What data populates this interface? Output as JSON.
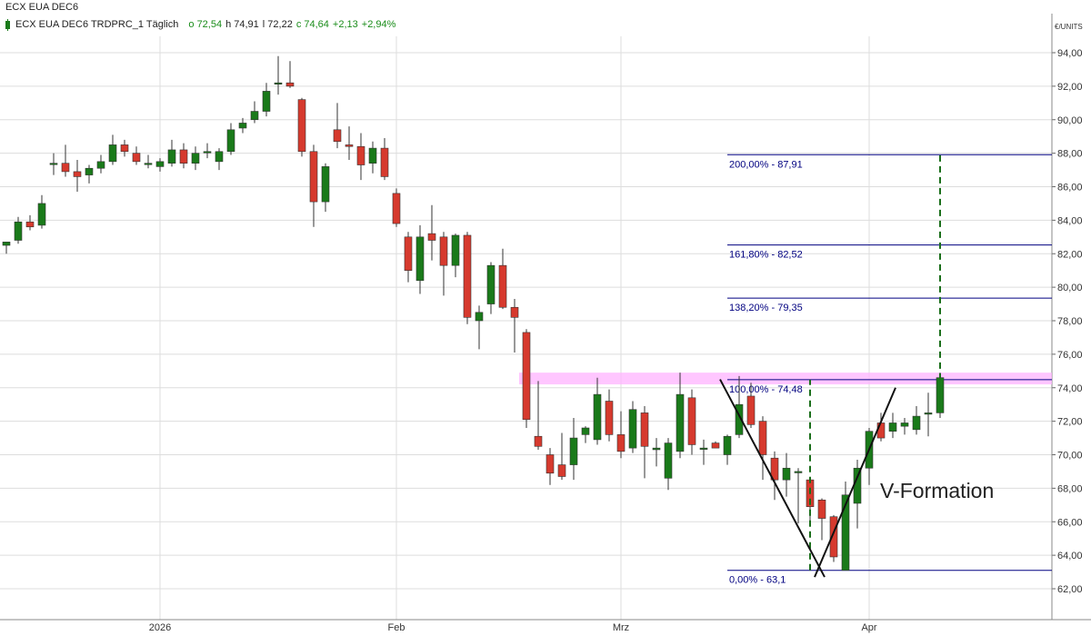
{
  "legend": {
    "title": "ECX EUA DEC6",
    "series": "ECX EUA DEC6 TRDPRC_1 Täglich",
    "open": "o 72,54",
    "high": "h 74,91",
    "low": "l 72,22",
    "close": "c 74,64",
    "change": "+2,13",
    "change_pct": "+2,94%"
  },
  "chart_data": {
    "type": "candlestick",
    "title": "ECX EUA DEC6",
    "ylabel": "€/UNITS",
    "ylim": [
      61,
      96
    ],
    "yticks": [
      "62,00",
      "64,00",
      "66,00",
      "68,00",
      "70,00",
      "72,00",
      "74,00",
      "76,00",
      "78,00",
      "80,00",
      "82,00",
      "84,00",
      "86,00",
      "88,00",
      "90,00",
      "92,00",
      "94,00"
    ],
    "xticks": [
      {
        "label": "2026",
        "index": 13
      },
      {
        "label": "Feb",
        "index": 33
      },
      {
        "label": "Mrz",
        "index": 52
      },
      {
        "label": "Apr",
        "index": 73
      }
    ],
    "colors": {
      "up": "#1a7a1a",
      "down": "#d63a2e",
      "grid": "#dddddd",
      "fib": "#000080",
      "zone": "#ffb3ff",
      "target": "#1a6e1a"
    },
    "candles": [
      {
        "o": 82.5,
        "h": 82.7,
        "l": 82.0,
        "c": 82.7
      },
      {
        "o": 82.8,
        "h": 84.2,
        "l": 82.6,
        "c": 83.9
      },
      {
        "o": 83.9,
        "h": 84.3,
        "l": 83.4,
        "c": 83.6
      },
      {
        "o": 83.7,
        "h": 85.5,
        "l": 83.5,
        "c": 85.0
      },
      {
        "o": 87.4,
        "h": 88.0,
        "l": 86.7,
        "c": 87.4
      },
      {
        "o": 87.4,
        "h": 88.5,
        "l": 86.6,
        "c": 86.9
      },
      {
        "o": 86.9,
        "h": 87.6,
        "l": 85.7,
        "c": 86.6
      },
      {
        "o": 86.7,
        "h": 87.3,
        "l": 86.2,
        "c": 87.1
      },
      {
        "o": 87.1,
        "h": 87.9,
        "l": 86.8,
        "c": 87.5
      },
      {
        "o": 87.5,
        "h": 89.1,
        "l": 87.3,
        "c": 88.5
      },
      {
        "o": 88.5,
        "h": 88.8,
        "l": 87.8,
        "c": 88.1
      },
      {
        "o": 88.0,
        "h": 88.4,
        "l": 87.3,
        "c": 87.5
      },
      {
        "o": 87.4,
        "h": 87.9,
        "l": 87.1,
        "c": 87.4
      },
      {
        "o": 87.2,
        "h": 87.7,
        "l": 86.9,
        "c": 87.5
      },
      {
        "o": 87.4,
        "h": 88.8,
        "l": 87.2,
        "c": 88.2
      },
      {
        "o": 88.2,
        "h": 88.6,
        "l": 87.1,
        "c": 87.4
      },
      {
        "o": 87.4,
        "h": 88.4,
        "l": 87.0,
        "c": 88.0
      },
      {
        "o": 88.1,
        "h": 88.6,
        "l": 87.7,
        "c": 88.1
      },
      {
        "o": 87.5,
        "h": 88.3,
        "l": 87.0,
        "c": 88.1
      },
      {
        "o": 88.1,
        "h": 89.8,
        "l": 87.9,
        "c": 89.4
      },
      {
        "o": 89.5,
        "h": 90.1,
        "l": 89.2,
        "c": 89.8
      },
      {
        "o": 90.0,
        "h": 91.1,
        "l": 89.8,
        "c": 90.5
      },
      {
        "o": 90.5,
        "h": 92.2,
        "l": 90.2,
        "c": 91.7
      },
      {
        "o": 92.2,
        "h": 93.8,
        "l": 91.5,
        "c": 92.2
      },
      {
        "o": 92.2,
        "h": 93.5,
        "l": 91.9,
        "c": 92.0
      },
      {
        "o": 91.2,
        "h": 91.3,
        "l": 87.8,
        "c": 88.1
      },
      {
        "o": 88.1,
        "h": 88.5,
        "l": 83.6,
        "c": 85.1
      },
      {
        "o": 85.1,
        "h": 87.4,
        "l": 84.5,
        "c": 87.2
      },
      {
        "o": 89.4,
        "h": 91.0,
        "l": 88.3,
        "c": 88.7
      },
      {
        "o": 88.5,
        "h": 89.6,
        "l": 87.6,
        "c": 88.4
      },
      {
        "o": 88.4,
        "h": 89.2,
        "l": 86.4,
        "c": 87.3
      },
      {
        "o": 87.4,
        "h": 88.7,
        "l": 86.8,
        "c": 88.3
      },
      {
        "o": 88.3,
        "h": 88.9,
        "l": 86.4,
        "c": 86.6
      },
      {
        "o": 85.6,
        "h": 85.9,
        "l": 83.6,
        "c": 83.8
      },
      {
        "o": 83.0,
        "h": 83.3,
        "l": 80.3,
        "c": 81.0
      },
      {
        "o": 80.4,
        "h": 83.7,
        "l": 79.6,
        "c": 83.0
      },
      {
        "o": 83.2,
        "h": 84.9,
        "l": 81.6,
        "c": 82.8
      },
      {
        "o": 83.0,
        "h": 83.3,
        "l": 79.5,
        "c": 81.3
      },
      {
        "o": 81.3,
        "h": 83.2,
        "l": 80.6,
        "c": 83.1
      },
      {
        "o": 83.1,
        "h": 83.3,
        "l": 77.8,
        "c": 78.2
      },
      {
        "o": 78.0,
        "h": 78.9,
        "l": 76.3,
        "c": 78.5
      },
      {
        "o": 79.0,
        "h": 81.5,
        "l": 78.4,
        "c": 81.3
      },
      {
        "o": 81.3,
        "h": 82.3,
        "l": 78.7,
        "c": 78.8
      },
      {
        "o": 78.8,
        "h": 79.3,
        "l": 76.1,
        "c": 78.2
      },
      {
        "o": 77.3,
        "h": 77.5,
        "l": 71.6,
        "c": 72.1
      },
      {
        "o": 71.1,
        "h": 74.4,
        "l": 70.3,
        "c": 70.5
      },
      {
        "o": 70.0,
        "h": 70.4,
        "l": 68.2,
        "c": 68.9
      },
      {
        "o": 69.4,
        "h": 71.3,
        "l": 68.5,
        "c": 68.7
      },
      {
        "o": 69.4,
        "h": 72.2,
        "l": 68.5,
        "c": 71.0
      },
      {
        "o": 71.2,
        "h": 71.7,
        "l": 70.7,
        "c": 71.6
      },
      {
        "o": 70.9,
        "h": 74.6,
        "l": 70.6,
        "c": 73.6
      },
      {
        "o": 73.2,
        "h": 73.9,
        "l": 70.8,
        "c": 71.2
      },
      {
        "o": 71.2,
        "h": 72.6,
        "l": 69.8,
        "c": 70.2
      },
      {
        "o": 70.4,
        "h": 73.2,
        "l": 70.1,
        "c": 72.7
      },
      {
        "o": 72.5,
        "h": 72.9,
        "l": 68.6,
        "c": 70.5
      },
      {
        "o": 70.3,
        "h": 71.0,
        "l": 69.3,
        "c": 70.4
      },
      {
        "o": 68.6,
        "h": 71.0,
        "l": 67.9,
        "c": 70.7
      },
      {
        "o": 70.2,
        "h": 74.9,
        "l": 69.8,
        "c": 73.6
      },
      {
        "o": 73.4,
        "h": 73.9,
        "l": 70.0,
        "c": 70.6
      },
      {
        "o": 70.4,
        "h": 70.9,
        "l": 69.4,
        "c": 70.4
      },
      {
        "o": 70.7,
        "h": 70.8,
        "l": 70.4,
        "c": 70.4
      },
      {
        "o": 70.0,
        "h": 71.2,
        "l": 69.4,
        "c": 71.1
      },
      {
        "o": 71.2,
        "h": 74.7,
        "l": 71.0,
        "c": 73.0
      },
      {
        "o": 73.5,
        "h": 74.3,
        "l": 71.6,
        "c": 71.8
      },
      {
        "o": 72.0,
        "h": 72.3,
        "l": 68.5,
        "c": 70.0
      },
      {
        "o": 69.8,
        "h": 70.2,
        "l": 67.3,
        "c": 68.5
      },
      {
        "o": 68.5,
        "h": 70.1,
        "l": 67.5,
        "c": 69.2
      },
      {
        "o": 69.0,
        "h": 69.2,
        "l": 65.9,
        "c": 69.0
      },
      {
        "o": 68.5,
        "h": 68.5,
        "l": 65.8,
        "c": 66.9
      },
      {
        "o": 67.3,
        "h": 67.4,
        "l": 64.9,
        "c": 66.2
      },
      {
        "o": 66.3,
        "h": 66.4,
        "l": 63.6,
        "c": 63.9
      },
      {
        "o": 63.1,
        "h": 68.4,
        "l": 63.1,
        "c": 67.6
      },
      {
        "o": 67.1,
        "h": 69.7,
        "l": 65.6,
        "c": 69.2
      },
      {
        "o": 69.2,
        "h": 71.6,
        "l": 68.2,
        "c": 71.4
      },
      {
        "o": 71.9,
        "h": 72.5,
        "l": 70.8,
        "c": 71.0
      },
      {
        "o": 71.4,
        "h": 72.5,
        "l": 71.0,
        "c": 71.9
      },
      {
        "o": 71.7,
        "h": 72.2,
        "l": 71.2,
        "c": 71.9
      },
      {
        "o": 71.5,
        "h": 72.9,
        "l": 71.2,
        "c": 72.3
      },
      {
        "o": 72.5,
        "h": 73.7,
        "l": 71.1,
        "c": 72.5
      },
      {
        "o": 72.5,
        "h": 74.9,
        "l": 72.2,
        "c": 74.6
      }
    ],
    "fib_levels": [
      {
        "label": "200,00% - 87,91",
        "value": 87.91
      },
      {
        "label": "161,80% - 82,52",
        "value": 82.52
      },
      {
        "label": "138,20% - 79,35",
        "value": 79.35
      },
      {
        "label": "100,00% - 74,48",
        "value": 74.48
      },
      {
        "label": "0,00% - 63,1",
        "value": 63.1
      }
    ],
    "resistance_zone": {
      "from": 74.2,
      "to": 74.9
    },
    "annotation": "V-Formation",
    "v_lines": [
      {
        "from": {
          "index": 61,
          "value": 74.5
        },
        "to": {
          "index": 69,
          "value": 62.7
        }
      },
      {
        "from": {
          "index": 69,
          "value": 62.7
        },
        "to": {
          "index": 75,
          "value": 74.0
        }
      }
    ],
    "target_lines": [
      {
        "index": 68,
        "from": 63.1,
        "to": 74.48
      },
      {
        "index": 79,
        "from": 74.48,
        "to": 87.91
      }
    ]
  }
}
